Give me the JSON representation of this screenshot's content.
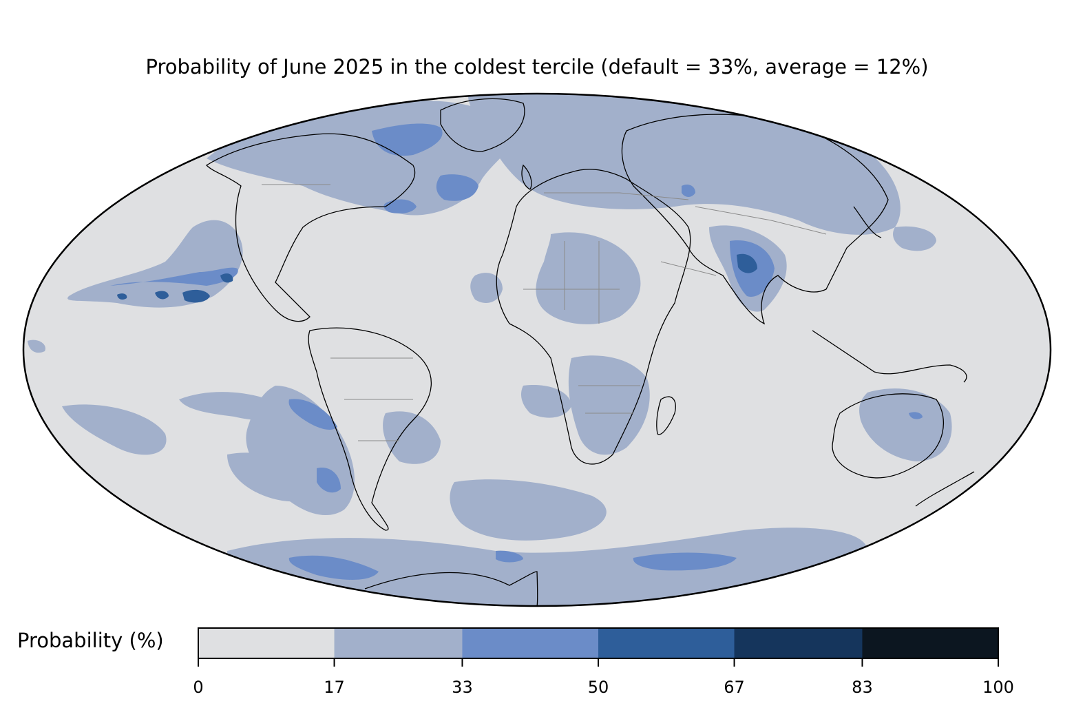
{
  "title": "Probability of June 2025 in the coldest tercile (default = 33%, average = 12%)",
  "colorbar": {
    "label": "Probability (%)",
    "ticks": [
      "0",
      "17",
      "33",
      "50",
      "67",
      "83",
      "100"
    ],
    "bins": [
      {
        "from": 0,
        "to": 17,
        "color": "#dfe0e2"
      },
      {
        "from": 17,
        "to": 33,
        "color": "#a2b0cb"
      },
      {
        "from": 33,
        "to": 50,
        "color": "#6b8cc8"
      },
      {
        "from": 50,
        "to": 67,
        "color": "#2e5e9a"
      },
      {
        "from": 67,
        "to": 83,
        "color": "#15355c"
      },
      {
        "from": 83,
        "to": 100,
        "color": "#0c1620"
      }
    ]
  },
  "map": {
    "projection": "Mollweide",
    "background_color": "#dfe0e2",
    "coastline_color": "#000000",
    "border_color": "#8a8a8a"
  }
}
